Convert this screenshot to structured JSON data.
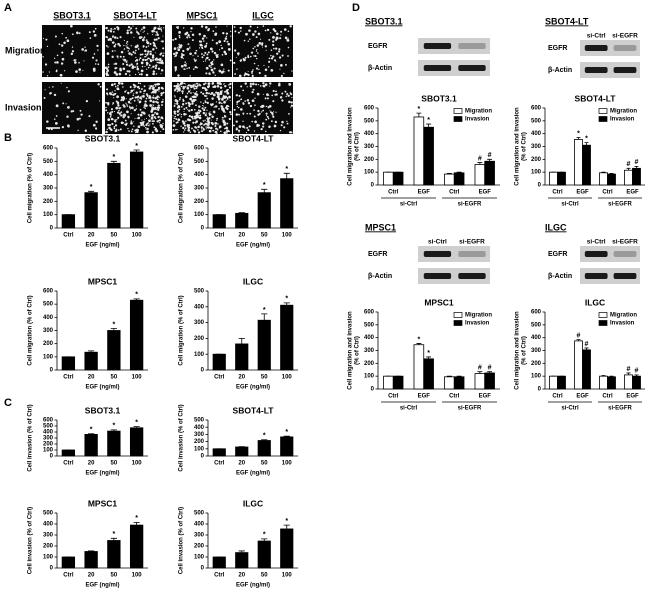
{
  "panel_labels": [
    "A",
    "B",
    "C",
    "D"
  ],
  "panel_a": {
    "cell_lines": [
      "SBOT3.1",
      "SBOT4-LT",
      "MPSC1",
      "ILGC"
    ],
    "rows": [
      "Migration",
      "Invasion"
    ]
  },
  "blots": [
    {
      "title": "SBOT3.1",
      "rows": [
        "EGFR",
        "β-Actin"
      ]
    },
    {
      "title": "SBOT4-LT",
      "lanes": [
        "si-Ctrl",
        "si-EGFR"
      ],
      "rows": [
        "EGFR",
        "β-Actin"
      ]
    },
    {
      "title": "MPSC1",
      "lanes": [
        "si-Ctrl",
        "si-EGFR"
      ],
      "rows": [
        "EGFR",
        "β-Actin"
      ]
    },
    {
      "title": "ILGC",
      "lanes": [
        "si-Ctrl",
        "si-EGFR"
      ],
      "rows": [
        "EGFR",
        "β-Actin"
      ]
    }
  ],
  "chart_data": [
    {
      "type": "bar",
      "title": "SBOT3.1",
      "categories": [
        "Ctrl",
        "20",
        "50",
        "100"
      ],
      "values": [
        100,
        265,
        485,
        570
      ],
      "errors": [
        0,
        10,
        15,
        15
      ],
      "markers": [
        null,
        "*",
        "*",
        "*"
      ],
      "color": "#000000",
      "ylim": [
        0,
        600
      ],
      "yticks": [
        0,
        100,
        200,
        300,
        400,
        500,
        600
      ],
      "ylabel": "Cell migration (% of Ctrl)",
      "xlabel": "EGF (ng/ml)"
    },
    {
      "type": "bar",
      "title": "SBOT4-LT",
      "categories": [
        "Ctrl",
        "20",
        "50",
        "100"
      ],
      "values": [
        100,
        110,
        265,
        370
      ],
      "errors": [
        0,
        5,
        25,
        40
      ],
      "markers": [
        null,
        null,
        "*",
        "*"
      ],
      "color": "#000000",
      "ylim": [
        0,
        600
      ],
      "yticks": [
        0,
        100,
        200,
        300,
        400,
        500,
        600
      ],
      "ylabel": "Cell migration (% of Ctrl)",
      "xlabel": "EGF (ng/ml)"
    },
    {
      "type": "bar",
      "title": "MPSC1",
      "categories": [
        "Ctrl",
        "20",
        "50",
        "100"
      ],
      "values": [
        100,
        135,
        300,
        530
      ],
      "errors": [
        0,
        10,
        15,
        10
      ],
      "markers": [
        null,
        null,
        "*",
        "*"
      ],
      "color": "#000000",
      "ylim": [
        0,
        600
      ],
      "yticks": [
        0,
        100,
        200,
        300,
        400,
        500,
        600
      ],
      "ylabel": "Cell migration (% of Ctrl)",
      "xlabel": "EGF (ng/ml)"
    },
    {
      "type": "bar",
      "title": "ILGC",
      "categories": [
        "Ctrl",
        "20",
        "50",
        "100"
      ],
      "values": [
        100,
        165,
        315,
        410
      ],
      "errors": [
        0,
        35,
        40,
        15
      ],
      "markers": [
        null,
        null,
        "*",
        "*"
      ],
      "color": "#000000",
      "ylim": [
        0,
        500
      ],
      "yticks": [
        0,
        100,
        200,
        300,
        400,
        500
      ],
      "ylabel": "Cell migration (% of Ctrl)",
      "xlabel": "EGF (ng/ml)"
    },
    {
      "type": "bar",
      "title": "SBOT3.1",
      "categories": [
        "Ctrl",
        "20",
        "50",
        "100"
      ],
      "values": [
        100,
        360,
        415,
        470
      ],
      "errors": [
        0,
        10,
        20,
        20
      ],
      "markers": [
        null,
        "*",
        "*",
        "*"
      ],
      "color": "#000000",
      "ylim": [
        0,
        600
      ],
      "yticks": [
        0,
        100,
        200,
        300,
        400,
        500,
        600
      ],
      "ylabel": "Cell invasion (% of Ctrl)",
      "xlabel": "EGF (ng/ml)"
    },
    {
      "type": "bar",
      "title": "SBOT4-LT",
      "categories": [
        "Ctrl",
        "20",
        "50",
        "100"
      ],
      "values": [
        100,
        125,
        215,
        265
      ],
      "errors": [
        0,
        5,
        10,
        10
      ],
      "markers": [
        null,
        null,
        "*",
        "*"
      ],
      "color": "#000000",
      "ylim": [
        0,
        500
      ],
      "yticks": [
        0,
        100,
        200,
        300,
        400,
        500
      ],
      "ylabel": "Cell invasion (% of Ctrl)",
      "xlabel": "EGF (ng/ml)"
    },
    {
      "type": "bar",
      "title": "MPSC1",
      "categories": [
        "Ctrl",
        "20",
        "50",
        "100"
      ],
      "values": [
        100,
        150,
        250,
        390
      ],
      "errors": [
        0,
        5,
        20,
        25
      ],
      "markers": [
        null,
        null,
        "*",
        "*"
      ],
      "color": "#000000",
      "ylim": [
        0,
        500
      ],
      "yticks": [
        0,
        100,
        200,
        300,
        400,
        500
      ],
      "ylabel": "Cell invasion (% of Ctrl)",
      "xlabel": "EGF (ng/ml)"
    },
    {
      "type": "bar",
      "title": "ILGC",
      "categories": [
        "Ctrl",
        "20",
        "50",
        "100"
      ],
      "values": [
        100,
        140,
        245,
        355
      ],
      "errors": [
        0,
        15,
        20,
        35
      ],
      "markers": [
        null,
        null,
        "*",
        "*"
      ],
      "color": "#000000",
      "ylim": [
        0,
        500
      ],
      "yticks": [
        0,
        100,
        200,
        300,
        400,
        500
      ],
      "ylabel": "Cell invasion (% of Ctrl)",
      "xlabel": "EGF (ng/ml)"
    },
    {
      "type": "grouped_bar",
      "title": "SBOT3.1",
      "categories": [
        "Ctrl",
        "EGF",
        "Ctrl",
        "EGF"
      ],
      "groups": [
        "si-Ctrl",
        "si-EGFR"
      ],
      "legend": "upper right",
      "ylim": [
        0,
        600
      ],
      "yticks": [
        0,
        100,
        200,
        300,
        400,
        500,
        600
      ],
      "ylabel": [
        "Cell migration and invasion",
        "(% of Ctrl)"
      ],
      "series": [
        {
          "name": "Migration",
          "color": "#ffffff",
          "values": [
            100,
            530,
            85,
            160
          ],
          "errors": [
            0,
            30,
            5,
            15
          ],
          "markers": [
            null,
            "*",
            null,
            "#"
          ]
        },
        {
          "name": "Invasion",
          "color": "#000000",
          "values": [
            100,
            450,
            95,
            185
          ],
          "errors": [
            0,
            25,
            5,
            15
          ],
          "markers": [
            null,
            "*",
            null,
            "#"
          ]
        }
      ]
    },
    {
      "type": "grouped_bar",
      "title": "SBOT4-LT",
      "categories": [
        "Ctrl",
        "EGF",
        "Ctrl",
        "EGF"
      ],
      "groups": [
        "si-Ctrl",
        "si-EGFR"
      ],
      "legend": "upper right",
      "ylim": [
        0,
        600
      ],
      "yticks": [
        0,
        100,
        200,
        300,
        400,
        500,
        600
      ],
      "ylabel": [
        "Cell migration and invasion",
        "(% of Ctrl)"
      ],
      "series": [
        {
          "name": "Migration",
          "color": "#ffffff",
          "values": [
            100,
            355,
            95,
            115
          ],
          "errors": [
            0,
            15,
            5,
            15
          ],
          "markers": [
            null,
            "*",
            null,
            "#"
          ]
        },
        {
          "name": "Invasion",
          "color": "#000000",
          "values": [
            100,
            310,
            85,
            130
          ],
          "errors": [
            0,
            20,
            5,
            15
          ],
          "markers": [
            null,
            "*",
            null,
            "#"
          ]
        }
      ]
    },
    {
      "type": "grouped_bar",
      "title": "MPSC1",
      "categories": [
        "Ctrl",
        "EGF",
        "Ctrl",
        "EGF"
      ],
      "groups": [
        "si-Ctrl",
        "si-EGFR"
      ],
      "legend": "upper right",
      "ylim": [
        0,
        600
      ],
      "yticks": [
        0,
        100,
        200,
        300,
        400,
        500,
        600
      ],
      "ylabel": [
        "Cell migration and invasion",
        "(% of Ctrl)"
      ],
      "series": [
        {
          "name": "Migration",
          "color": "#ffffff",
          "values": [
            100,
            345,
            95,
            120
          ],
          "errors": [
            0,
            10,
            5,
            15
          ],
          "markers": [
            null,
            "*",
            null,
            "#"
          ]
        },
        {
          "name": "Invasion",
          "color": "#000000",
          "values": [
            100,
            235,
            95,
            125
          ],
          "errors": [
            0,
            15,
            5,
            10
          ],
          "markers": [
            null,
            "*",
            null,
            "#"
          ]
        }
      ]
    },
    {
      "type": "grouped_bar",
      "title": "ILGC",
      "categories": [
        "Ctrl",
        "EGF",
        "Ctrl",
        "EGF"
      ],
      "groups": [
        "si-Ctrl",
        "si-EGFR"
      ],
      "legend": "upper right",
      "ylim": [
        0,
        600
      ],
      "yticks": [
        0,
        100,
        200,
        300,
        400,
        500,
        600
      ],
      "ylabel": [
        "Cell migration and invasion",
        "(% of Ctrl)"
      ],
      "series": [
        {
          "name": "Migration",
          "color": "#ffffff",
          "values": [
            100,
            375,
            100,
            110
          ],
          "errors": [
            0,
            10,
            5,
            15
          ],
          "markers": [
            null,
            "#",
            null,
            "#"
          ]
        },
        {
          "name": "Invasion",
          "color": "#000000",
          "values": [
            100,
            305,
            95,
            100
          ],
          "errors": [
            0,
            15,
            5,
            10
          ],
          "markers": [
            null,
            "#",
            null,
            "#"
          ]
        }
      ]
    }
  ]
}
